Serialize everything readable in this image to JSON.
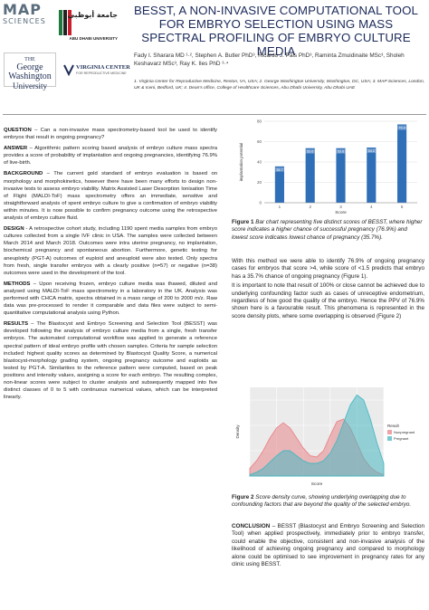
{
  "logos": {
    "map_line1": "MAP",
    "map_line2": "SCIENCES",
    "adu_arabic": "جامعة أبوظبي",
    "adu_english": "ABU DHABI UNIVERSITY",
    "gwu_line1": "THE",
    "gwu_line2": "George Washington",
    "gwu_line3": "University",
    "vc_name": "VIRGINIA CENTER",
    "vc_sub": "FOR REPRODUCTIVE MEDICINE"
  },
  "header": {
    "title": "BESST, A NON-INVASIVE COMPUTATIONAL TOOL FOR EMBRYO SELECTION USING MASS SPECTRAL PROFILING OF EMBRYO CULTURE MEDIA",
    "authors": "Fady I. Sharara MD ¹·², Stephen A. Butler PhD³, Ricardo J. Pais PhD³, Raminta Zmuidinaite MSc³, Sholeh Keshavarz MSc³, Ray K. Iles PhD ³·⁴",
    "affiliations": "1. Virginia Center for Reproductive Medicine, Reston, VA, USA; 2. George Washington University, Washington, DC, USA; 3. MAP Sciences, London, UK & Iceni, Bedford, UK; 4. Dean's office, College of Healthcare Sciences, Abu Dhabi University, Abu Dhabi UAE"
  },
  "left": {
    "question_head": "QUESTION",
    "question": " – Can a non-invasive mass spectrometry-based tool be used to identify embryos that result in ongoing pregnancy?",
    "answer_head": "ANSWER",
    "answer": " – Algorithmic pattern scoring based analysis of embryo culture mass spectra provides a score of probability of implantation and ongoing pregnancies, identifying 76.9% of live-birth.",
    "background_head": "BACKGROUND",
    "background": " – The current gold standard of embryo evaluation is based on morphology and morphokinetics, however there have been many efforts to design non-invasive tests to assess embryo viability. Matrix Assisted Laser Desorption Ionisation Time of Flight (MALDI-ToF) mass spectrometry offers an immediate, sensitive and straightforward analysis of spent embryo culture to give a confirmation of embryo viability within minutes. It is now possible to confirm pregnancy outcome using the retrospective analysis of embryo culture fluid.",
    "design_head": "DESIGN",
    "design": " - A retrospective cohort study, including 1190 spent media samples from embryo cultures collected from a single IVF clinic in USA. The samples were collected between March 2014 and March 2018. Outcomes were intra uterine pregnancy, no implantation, biochemical pregnancy and spontaneous abortion. Furthermore, genetic testing for aneuploidy (PGT-A) outcomes of euploid and aneuploid were also tested. Only spectra from fresh, single transfer embryos with a clearly positive (n=57) or negative (n=38) outcomes were used in the development of the tool.",
    "methods_head": "METHODS",
    "methods": " – Upon receiving frozen, embryo culture media was thawed, diluted and analysed using MALDI-ToF mass spectrometry in a laboratory in the UK. Analysis was performed with CHCA matrix, spectra obtained in a mass range of 200 to 2000 m/z. Raw data was pre-processed to render it comparable and data files were subject to semi-quantitative computational analysis using Python.",
    "results_head": "RESULTS",
    "results": " – The Blastocyst and Embryo Screening and Selection Tool (BESST) was developed following the analysis of embryo culture media from a single, fresh transfer embryos. The automated computational workflow was applied to generate a reference spectral pattern of ideal embryo profile with chosen samples. Criteria for sample selection included: highest quality scores as determined by Blastocyst Quality Score, a numerical blastocyst-morphology grading system, ongoing pregnancy outcome and euploids as tested by PGT-A. Similarities to the reference pattern were computed, based on peak positions and intensity values, assigning a score for each embryo. The resulting complex, non-linear scores were subject to cluster analysis and subsequently mapped into five distinct classes of 0 to 5 with continuous numerical values, which can be interpreted linearly."
  },
  "chart_data": [
    {
      "type": "bar",
      "categories": [
        "1",
        "2",
        "3",
        "4",
        "5"
      ],
      "values": [
        35.7,
        53.6,
        53.6,
        54.2,
        76.9
      ],
      "value_labels": [
        "35.7",
        "53.6",
        "53.6",
        "54.2",
        "76.9"
      ],
      "xlabel": "Score",
      "ylabel": "implantation potential",
      "ylim": [
        0,
        80
      ],
      "yticks": [
        0,
        20,
        40,
        60,
        80
      ],
      "color": "#2f6fb8",
      "grid": true
    },
    {
      "type": "area",
      "title": "",
      "xlabel": "Score",
      "ylabel": "Density",
      "legend_title": "Result",
      "legend_placement": "right",
      "series": [
        {
          "name": "Nonpregnant",
          "color": "#e8868a",
          "x": [
            0,
            0.25,
            0.5,
            0.75,
            1,
            1.25,
            1.5,
            1.75,
            2,
            2.25,
            2.5,
            2.75,
            3,
            3.25,
            3.5,
            3.75,
            4,
            4.25,
            4.5,
            4.75,
            5
          ],
          "values": [
            0.06,
            0.12,
            0.2,
            0.3,
            0.38,
            0.42,
            0.38,
            0.3,
            0.22,
            0.16,
            0.15,
            0.2,
            0.32,
            0.43,
            0.45,
            0.38,
            0.26,
            0.14,
            0.07,
            0.03,
            0.01
          ]
        },
        {
          "name": "Pregnant",
          "color": "#49b8c2",
          "x": [
            0,
            0.25,
            0.5,
            0.75,
            1,
            1.25,
            1.5,
            1.75,
            2,
            2.25,
            2.5,
            2.75,
            3,
            3.25,
            3.5,
            3.75,
            4,
            4.25,
            4.5,
            4.75,
            5
          ],
          "values": [
            0.01,
            0.03,
            0.06,
            0.11,
            0.16,
            0.2,
            0.2,
            0.16,
            0.12,
            0.1,
            0.1,
            0.12,
            0.18,
            0.28,
            0.42,
            0.56,
            0.64,
            0.6,
            0.45,
            0.26,
            0.1
          ]
        }
      ]
    }
  ],
  "right": {
    "fig1_label": "Figure 1",
    "fig1_caption": " Bar chart representing five distinct scores of BESST, where higher score indicates a higher chance of successful pregnancy (76.9%) and lowest score indicates lowest chance of pregnancy (35.7%).",
    "para1": "With this method we were able to identify 76.9% of ongoing pregnancy cases for embryos that score >4, while score of <1.5 predicts that embryo has a 35.7% chance of ongoing pregnancy (Figure 1).",
    "para2": "It is important to note that result of 100% or close cannot be achieved due to underlying confounding factor such as cases of unreceptive endometrium, regardless of how good the quality of the embryo. Hence the PPV of 76.9% shown here is a favourable result. This phenomena is represented in the score density plots, where some overlapping is observed (Figure 2)",
    "fig2_label": "Figure 2",
    "fig2_caption": " Score density curve, showing underlying overlapping due to confounding factors that are beyond the quality of the selected embryo.",
    "conclusion_head": "CONCLUSION",
    "conclusion": " – BESST (Blastocyst and Embryo Screening and Selection Tool) when applied prospectively, immediately prior to embryo transfer, could enable the objective, consistent and non-invasive analysis of the likelihood of achieving ongoing pregnancy and compared to morphology alone could be optimised to see improvement in pregnancy rates for any clinic using BESST."
  }
}
